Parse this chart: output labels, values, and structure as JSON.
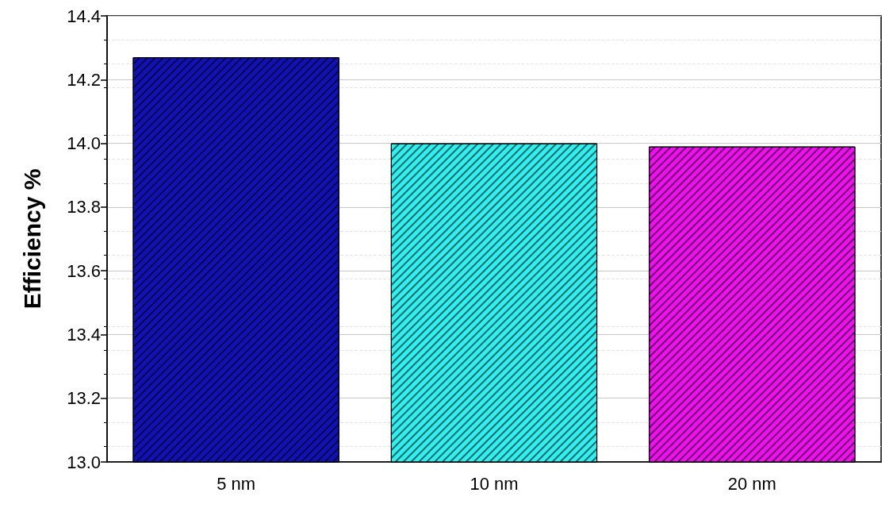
{
  "chart_data": {
    "type": "bar",
    "ylabel": "Efficiency %",
    "categories": [
      "5 nm",
      "10 nm",
      "20 nm"
    ],
    "values": [
      14.27,
      14.0,
      13.99
    ],
    "colors": [
      "#1111b4",
      "#33eeee",
      "#ee11ee"
    ],
    "ylim": [
      13.0,
      14.4
    ],
    "yticks": [
      {
        "value": 13.0,
        "label": "13.0"
      },
      {
        "value": 13.2,
        "label": "13.2"
      },
      {
        "value": 13.4,
        "label": "13.4"
      },
      {
        "value": 13.6,
        "label": "13.6"
      },
      {
        "value": 13.8,
        "label": "13.8"
      },
      {
        "value": 14.0,
        "label": "14.0"
      },
      {
        "value": 14.2,
        "label": "14.2"
      },
      {
        "value": 14.4,
        "label": "14.4"
      }
    ],
    "grid": "y"
  }
}
